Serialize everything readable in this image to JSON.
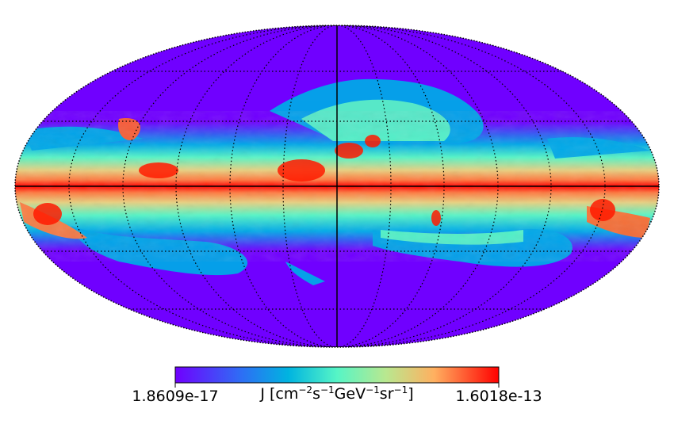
{
  "figure": {
    "projection": "Mollweide all-sky map",
    "colormap": "rainbow",
    "grid": "dotted graticule",
    "colors": {
      "background": "#7000ff",
      "low": "#7000ff",
      "mid_blue": "#00a8e8",
      "cyan": "#56f5c6",
      "green": "#a0f0a0",
      "yellow": "#e8d080",
      "orange": "#ff8a50",
      "high": "#ff0000"
    }
  },
  "colorbar": {
    "min_label": "1.8609e-17",
    "max_label": "1.6018e-13",
    "unit_label_base": "J [cm",
    "unit_sup1": "−2",
    "unit_s": "s",
    "unit_sup2": "−1",
    "unit_gev": "GeV",
    "unit_sup3": "−1",
    "unit_sr": "sr",
    "unit_sup4": "−1",
    "unit_close": "]"
  }
}
